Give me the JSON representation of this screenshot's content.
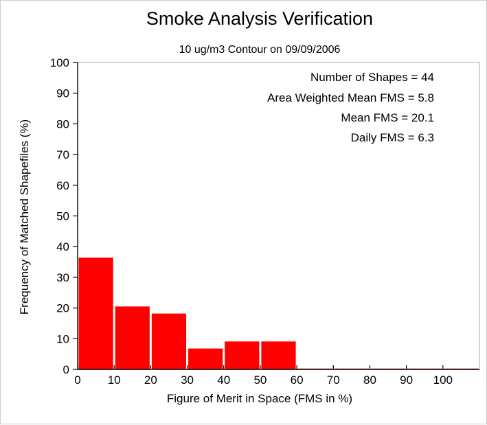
{
  "chart_data": {
    "type": "bar",
    "title": "Smoke Analysis Verification",
    "subtitle": "10 ug/m3 Contour on 09/09/2006",
    "xlabel": "Figure of Merit in Space (FMS in %)",
    "ylabel": "Frequency of Matched Shapefiles (%)",
    "xlim": [
      0,
      110
    ],
    "ylim": [
      0,
      100
    ],
    "xticks": [
      0,
      10,
      20,
      30,
      40,
      50,
      60,
      70,
      80,
      90,
      100
    ],
    "yticks": [
      0,
      10,
      20,
      30,
      40,
      50,
      60,
      70,
      80,
      90,
      100
    ],
    "bin_width": 10,
    "bins": [
      0,
      10,
      20,
      30,
      40,
      50,
      60,
      70,
      80,
      90,
      100
    ],
    "values": [
      36.4,
      20.5,
      18.2,
      6.8,
      9.1,
      9.1,
      0,
      0,
      0,
      0,
      0
    ],
    "bar_color": "#ff0000",
    "grid": false,
    "legend": "none",
    "annotations": [
      "Number of Shapes = 44",
      "Area Weighted Mean FMS = 5.8",
      "Mean FMS = 20.1",
      "Daily FMS = 6.3"
    ]
  }
}
